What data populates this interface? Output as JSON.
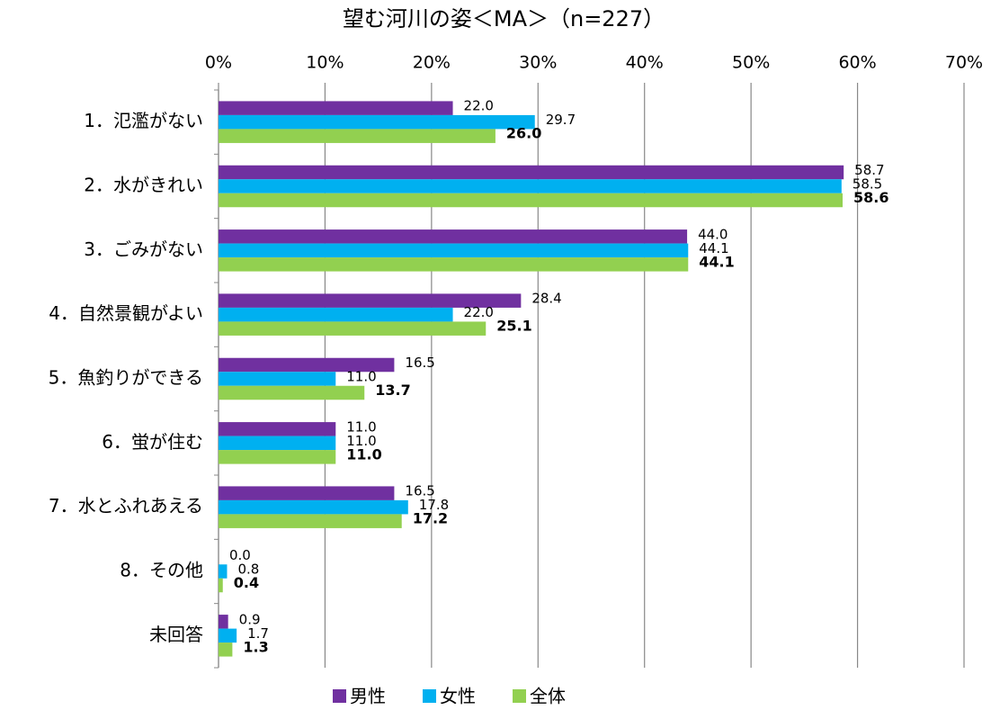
{
  "chart_data": {
    "type": "bar",
    "orientation": "horizontal",
    "title": "望む河川の姿＜MA＞（n=227）",
    "categories": [
      "1．氾濫がない",
      "2．水がきれい",
      "3．ごみがない",
      "4．自然景観がよい",
      "5．魚釣りができる",
      "6．蛍が住む",
      "7．水とふれあえる",
      "8．その他",
      "未回答"
    ],
    "series": [
      {
        "name": "男性",
        "color": "#7030a0",
        "values": [
          22.0,
          58.7,
          44.0,
          28.4,
          16.5,
          11.0,
          16.5,
          0.0,
          0.9
        ],
        "value_labels": [
          "22.0",
          "58.7",
          "44.0",
          "28.4",
          "16.5",
          "11.0",
          "16.5",
          "0.0",
          "0.9"
        ]
      },
      {
        "name": "女性",
        "color": "#00b0f0",
        "values": [
          29.7,
          58.5,
          44.1,
          22.0,
          11.0,
          11.0,
          17.8,
          0.8,
          1.7
        ],
        "value_labels": [
          "29.7",
          "58.5",
          "44.1",
          "22.0",
          "11.0",
          "11.0",
          "17.8",
          "0.8",
          "1.7"
        ]
      },
      {
        "name": "全体",
        "color": "#92d050",
        "values": [
          26.0,
          58.6,
          44.1,
          25.1,
          13.7,
          11.0,
          17.2,
          0.4,
          1.3
        ],
        "value_labels": [
          "26.0",
          "58.6",
          "44.1",
          "25.1",
          "13.7",
          "11.0",
          "17.2",
          "0.4",
          "1.3"
        ]
      }
    ],
    "xlim": [
      0,
      70
    ],
    "xticks": [
      {
        "value": 0,
        "label": "0%"
      },
      {
        "value": 10,
        "label": "10%"
      },
      {
        "value": 20,
        "label": "20%"
      },
      {
        "value": 30,
        "label": "30%"
      },
      {
        "value": 40,
        "label": "40%"
      },
      {
        "value": 50,
        "label": "50%"
      },
      {
        "value": 60,
        "label": "60%"
      },
      {
        "value": 70,
        "label": "70%"
      }
    ],
    "grid": true,
    "legend": "bottom"
  }
}
